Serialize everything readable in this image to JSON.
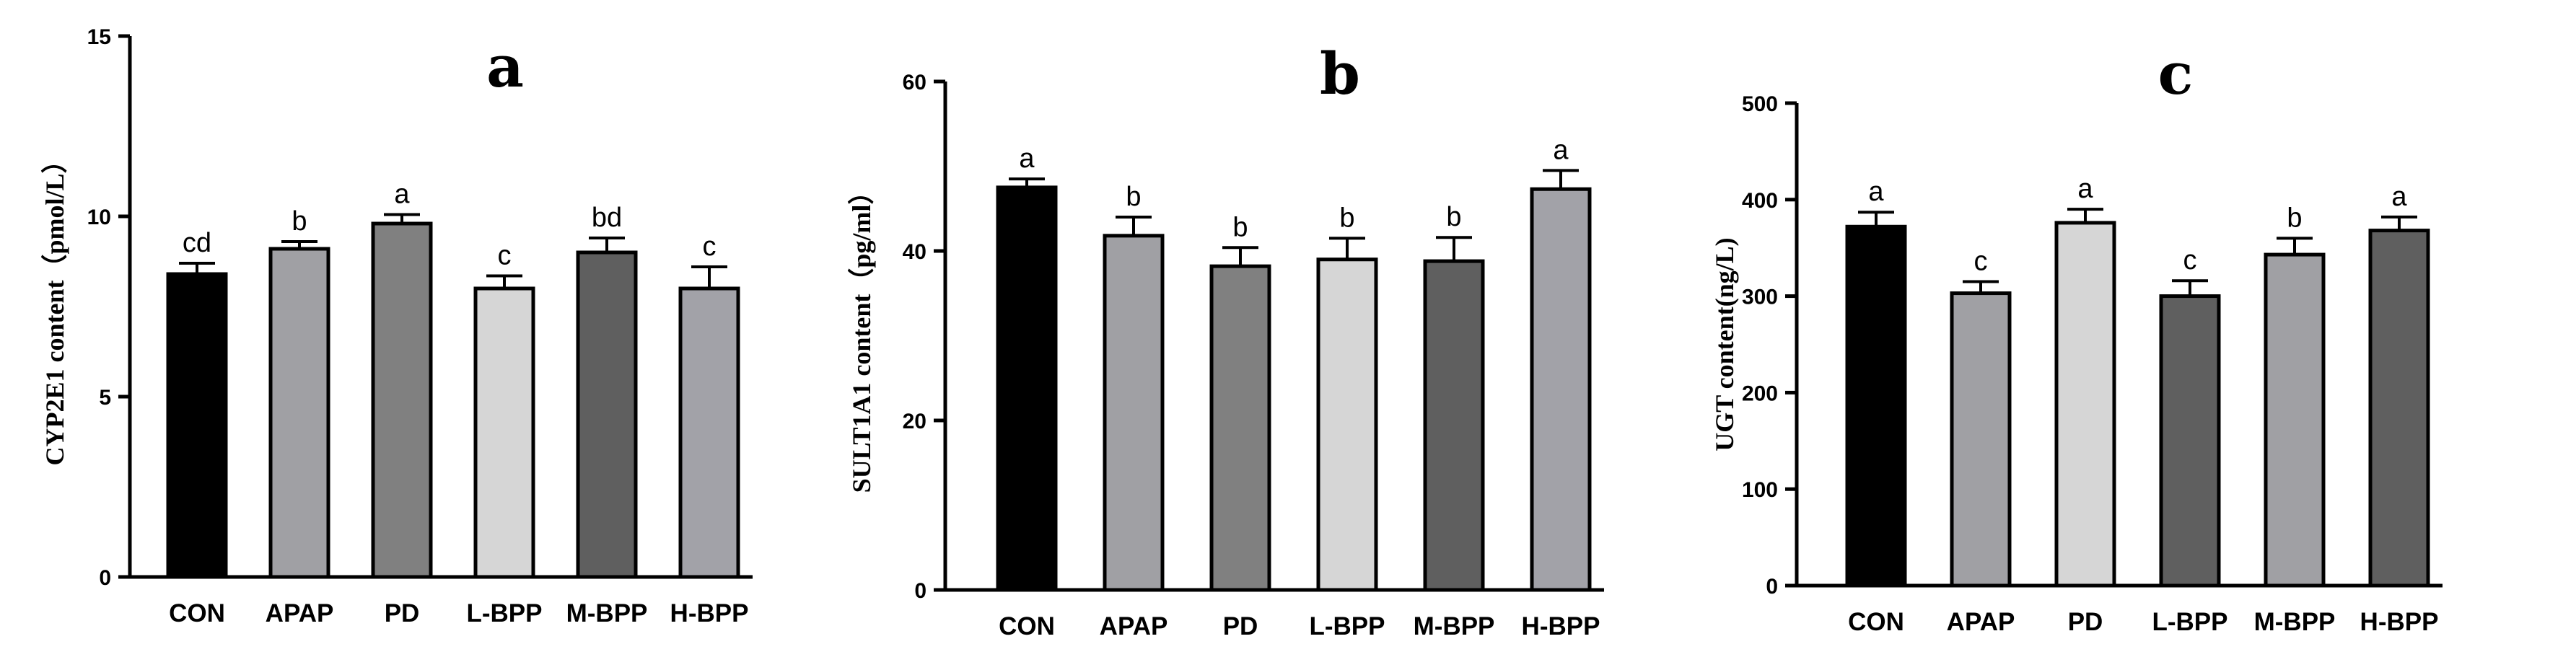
{
  "chart_data": [
    {
      "type": "bar",
      "panel": "a",
      "ylabel": "CYP2E1 content（pmol/L）",
      "ylim": [
        0,
        15
      ],
      "yticks": [
        0,
        5,
        10,
        15
      ],
      "categories": [
        "CON",
        "APAP",
        "PD",
        "L-BPP",
        "M-BPP",
        "H-BPP"
      ],
      "values": [
        8.4,
        9.1,
        9.8,
        8.0,
        9.0,
        8.0
      ],
      "errors": [
        0.3,
        0.2,
        0.25,
        0.35,
        0.4,
        0.6
      ],
      "significance": [
        "cd",
        "b",
        "a",
        "c",
        "bd",
        "c"
      ],
      "colors": [
        "#000000",
        "#a0a0a4",
        "#808080",
        "#d6d6d6",
        "#5f5f5f",
        "#a2a2a8"
      ]
    },
    {
      "type": "bar",
      "panel": "b",
      "ylabel": "SULT1A1 content（pg/ml）",
      "ylim": [
        0,
        60
      ],
      "yticks": [
        0,
        20,
        40,
        60
      ],
      "categories": [
        "CON",
        "APAP",
        "PD",
        "L-BPP",
        "M-BPP",
        "H-BPP"
      ],
      "values": [
        47.5,
        41.8,
        38.2,
        39.0,
        38.8,
        47.3
      ],
      "errors": [
        1.0,
        2.2,
        2.2,
        2.5,
        2.8,
        2.2
      ],
      "significance": [
        "a",
        "b",
        "b",
        "b",
        "b",
        "a"
      ],
      "colors": [
        "#000000",
        "#a0a0a4",
        "#808080",
        "#d6d6d6",
        "#5f5f5f",
        "#a2a2a8"
      ]
    },
    {
      "type": "bar",
      "panel": "c",
      "ylabel": "UGT content(ng/L)",
      "ylim": [
        0,
        500
      ],
      "yticks": [
        0,
        100,
        200,
        300,
        400,
        500
      ],
      "categories": [
        "CON",
        "APAP",
        "PD",
        "L-BPP",
        "M-BPP",
        "H-BPP"
      ],
      "values": [
        372,
        303,
        376,
        300,
        343,
        368
      ],
      "errors": [
        15,
        12,
        14,
        16,
        17,
        14
      ],
      "significance": [
        "a",
        "c",
        "a",
        "c",
        "b",
        "a"
      ],
      "colors": [
        "#000000",
        "#a0a0a4",
        "#d6d6d6",
        "#5f5f5f",
        "#a0a0a4",
        "#5f5f5f"
      ]
    }
  ]
}
